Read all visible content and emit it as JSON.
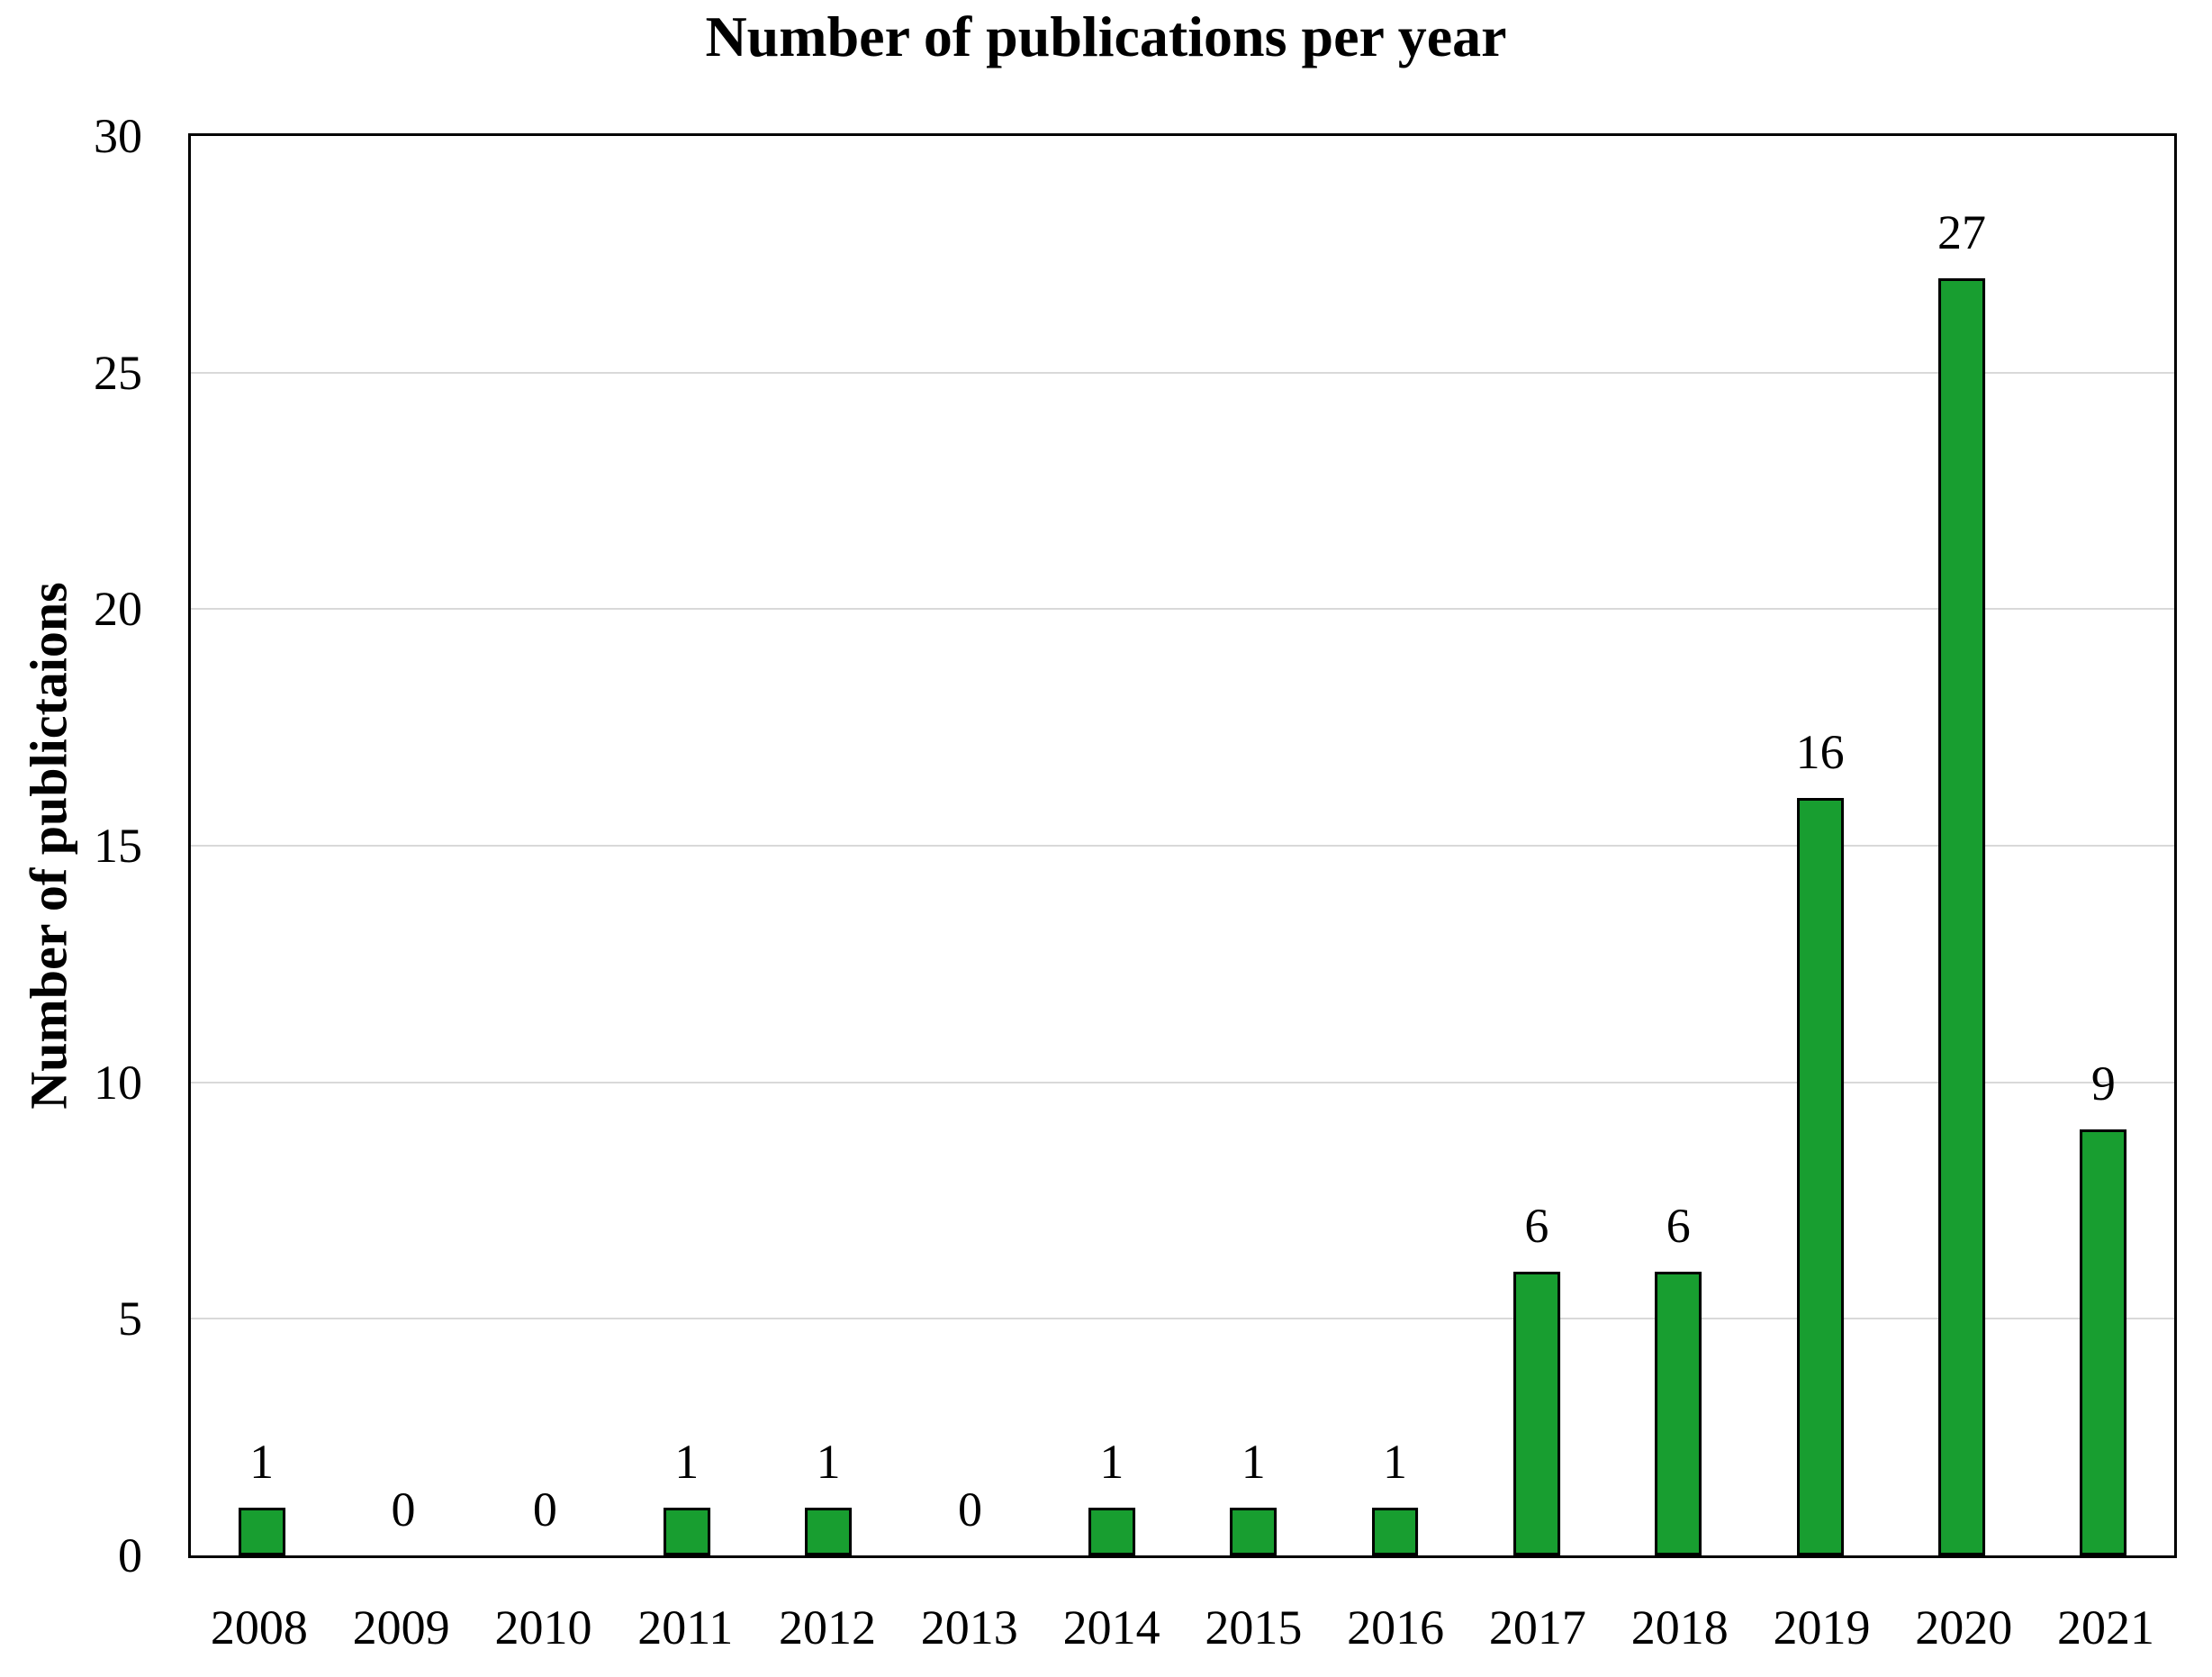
{
  "chart_data": {
    "type": "bar",
    "title": "Number of publications per year",
    "xlabel": "",
    "ylabel": "Number of publictaions",
    "categories": [
      "2008",
      "2009",
      "2010",
      "2011",
      "2012",
      "2013",
      "2014",
      "2015",
      "2016",
      "2017",
      "2018",
      "2019",
      "2020",
      "2021"
    ],
    "values": [
      1,
      0,
      0,
      1,
      1,
      0,
      1,
      1,
      1,
      6,
      6,
      16,
      27,
      9
    ],
    "ylim": [
      0,
      30
    ],
    "y_ticks": [
      0,
      5,
      10,
      15,
      20,
      25,
      30
    ],
    "grid": true,
    "legend": "none",
    "data_labels": true,
    "colors": {
      "bar_fill": "#189e30",
      "bar_border": "#000000",
      "gridline": "#d9d9d9",
      "axis_border": "#000000",
      "text": "#000000",
      "background": "#ffffff"
    }
  }
}
